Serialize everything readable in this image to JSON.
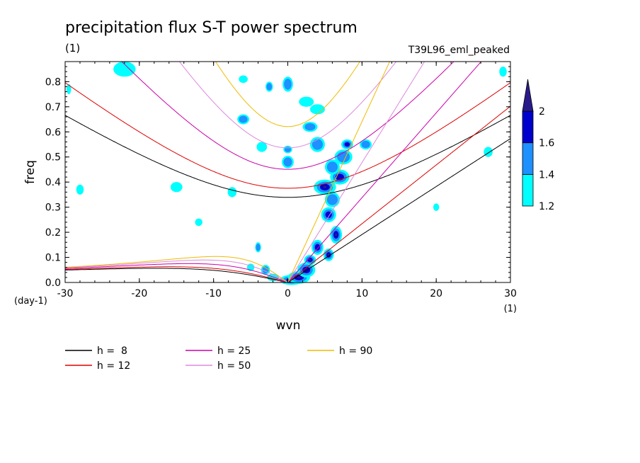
{
  "chart_data": {
    "type": "contour",
    "title": "precipitation flux S-T power spectrum",
    "units_left": "(1)",
    "dataset_label": "T39L96_eml_peaked",
    "xlabel": "wvn",
    "ylabel": "freq",
    "x_units": "(1)",
    "y_units": "(day-1)",
    "xlim": [
      -30,
      30
    ],
    "ylim": [
      0,
      0.88
    ],
    "x_ticks": [
      -30,
      -20,
      -10,
      0,
      10,
      20,
      30
    ],
    "x_tick_labels": [
      "-30",
      "-20",
      "-10",
      "0",
      "10",
      "20",
      "30"
    ],
    "y_ticks": [
      0.0,
      0.1,
      0.2,
      0.3,
      0.4,
      0.5,
      0.6,
      0.7,
      0.8
    ],
    "y_tick_labels": [
      "0.0",
      "0.1",
      "0.2",
      "0.3",
      "0.4",
      "0.5",
      "0.6",
      "0.7",
      "0.8"
    ],
    "colorbar": {
      "levels": [
        1.2,
        1.4,
        1.6,
        2
      ],
      "labels": [
        "1.2",
        "1.4",
        "1.6",
        "2"
      ],
      "colors": [
        "#00ffff",
        "#1e90ff",
        "#0000cd",
        "#2a1b8a"
      ]
    },
    "dispersion_curves": [
      {
        "label": "h =  8",
        "h": 8,
        "color": "#000000"
      },
      {
        "label": "h = 12",
        "h": 12,
        "color": "#dd0000"
      },
      {
        "label": "h = 25",
        "h": 25,
        "color": "#cc00aa"
      },
      {
        "label": "h = 50",
        "h": 50,
        "color": "#dd88dd"
      },
      {
        "label": "h = 90",
        "h": 90,
        "color": "#eebb00"
      }
    ],
    "spectral_blobs": [
      {
        "k": 0.5,
        "f": 0.01,
        "level": 4,
        "rk": 1.6,
        "rf": 0.02
      },
      {
        "k": 1.5,
        "f": 0.02,
        "level": 4,
        "rk": 1.5,
        "rf": 0.025
      },
      {
        "k": 2.5,
        "f": 0.05,
        "level": 3,
        "rk": 1.2,
        "rf": 0.03
      },
      {
        "k": 3.0,
        "f": 0.09,
        "level": 4,
        "rk": 0.8,
        "rf": 0.02
      },
      {
        "k": 4.0,
        "f": 0.14,
        "level": 3,
        "rk": 0.8,
        "rf": 0.03
      },
      {
        "k": 5.5,
        "f": 0.11,
        "level": 4,
        "rk": 0.7,
        "rf": 0.025
      },
      {
        "k": 6.5,
        "f": 0.19,
        "level": 4,
        "rk": 0.8,
        "rf": 0.035
      },
      {
        "k": 5.5,
        "f": 0.27,
        "level": 3,
        "rk": 1.0,
        "rf": 0.03
      },
      {
        "k": 6.0,
        "f": 0.33,
        "level": 2,
        "rk": 1.0,
        "rf": 0.03
      },
      {
        "k": 5.0,
        "f": 0.38,
        "level": 4,
        "rk": 1.5,
        "rf": 0.03
      },
      {
        "k": 7.0,
        "f": 0.42,
        "level": 3,
        "rk": 1.3,
        "rf": 0.03
      },
      {
        "k": 6.0,
        "f": 0.46,
        "level": 2,
        "rk": 1.0,
        "rf": 0.03
      },
      {
        "k": 7.5,
        "f": 0.5,
        "level": 2,
        "rk": 1.2,
        "rf": 0.03
      },
      {
        "k": 4.0,
        "f": 0.55,
        "level": 2,
        "rk": 1.0,
        "rf": 0.03
      },
      {
        "k": 3.0,
        "f": 0.62,
        "level": 2,
        "rk": 1.0,
        "rf": 0.02
      },
      {
        "k": 8.0,
        "f": 0.55,
        "level": 3,
        "rk": 0.8,
        "rf": 0.02
      },
      {
        "k": 10.5,
        "f": 0.55,
        "level": 2,
        "rk": 0.8,
        "rf": 0.02
      },
      {
        "k": 0.0,
        "f": 0.48,
        "level": 2,
        "rk": 0.8,
        "rf": 0.025
      },
      {
        "k": 0.0,
        "f": 0.53,
        "level": 2,
        "rk": 0.6,
        "rf": 0.015
      },
      {
        "k": 0.0,
        "f": 0.79,
        "level": 2,
        "rk": 0.7,
        "rf": 0.03
      },
      {
        "k": 2.5,
        "f": 0.72,
        "level": 1,
        "rk": 1.0,
        "rf": 0.02
      },
      {
        "k": 4.0,
        "f": 0.69,
        "level": 1,
        "rk": 1.0,
        "rf": 0.02
      },
      {
        "k": -6.0,
        "f": 0.65,
        "level": 2,
        "rk": 0.8,
        "rf": 0.02
      },
      {
        "k": -3.5,
        "f": 0.54,
        "level": 1,
        "rk": 0.7,
        "rf": 0.02
      },
      {
        "k": -4.0,
        "f": 0.14,
        "level": 2,
        "rk": 0.4,
        "rf": 0.02
      },
      {
        "k": -3.0,
        "f": 0.05,
        "level": 2,
        "rk": 0.6,
        "rf": 0.02
      },
      {
        "k": -2.0,
        "f": 0.02,
        "level": 1,
        "rk": 0.8,
        "rf": 0.015
      },
      {
        "k": -5.0,
        "f": 0.06,
        "level": 1,
        "rk": 0.5,
        "rf": 0.015
      },
      {
        "k": -7.5,
        "f": 0.36,
        "level": 1,
        "rk": 0.6,
        "rf": 0.02
      },
      {
        "k": -15.0,
        "f": 0.38,
        "level": 1,
        "rk": 0.8,
        "rf": 0.02
      },
      {
        "k": -22.0,
        "f": 0.85,
        "level": 1,
        "rk": 1.5,
        "rf": 0.03
      },
      {
        "k": -28.0,
        "f": 0.37,
        "level": 1,
        "rk": 0.5,
        "rf": 0.02
      },
      {
        "k": 20.0,
        "f": 0.3,
        "level": 1,
        "rk": 0.4,
        "rf": 0.015
      },
      {
        "k": 27.0,
        "f": 0.52,
        "level": 1,
        "rk": 0.6,
        "rf": 0.02
      },
      {
        "k": 29.0,
        "f": 0.84,
        "level": 1,
        "rk": 0.5,
        "rf": 0.02
      },
      {
        "k": -2.5,
        "f": 0.78,
        "level": 2,
        "rk": 0.5,
        "rf": 0.02
      },
      {
        "k": -6.0,
        "f": 0.81,
        "level": 1,
        "rk": 0.6,
        "rf": 0.015
      },
      {
        "k": -29.5,
        "f": 0.77,
        "level": 1,
        "rk": 0.3,
        "rf": 0.02
      },
      {
        "k": -12.0,
        "f": 0.24,
        "level": 1,
        "rk": 0.5,
        "rf": 0.015
      }
    ]
  }
}
